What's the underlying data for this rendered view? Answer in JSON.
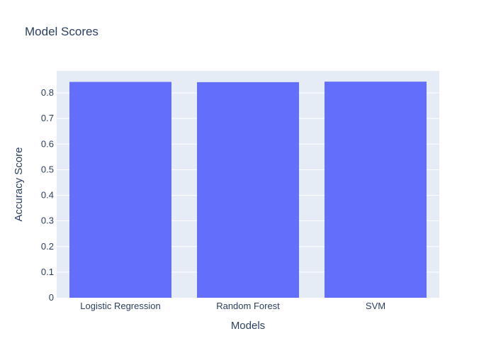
{
  "chart_data": {
    "type": "bar",
    "title": "Model Scores",
    "xlabel": "Models",
    "ylabel": "Accuracy Score",
    "categories": [
      "Logistic Regression",
      "Random Forest",
      "SVM"
    ],
    "values": [
      0.843,
      0.842,
      0.844
    ],
    "ylim": [
      0,
      0.886
    ],
    "yticks": [
      0,
      0.1,
      0.2,
      0.3,
      0.4,
      0.5,
      0.6,
      0.7,
      0.8
    ],
    "ytick_labels": [
      "0",
      "0.1",
      "0.2",
      "0.3",
      "0.4",
      "0.5",
      "0.6",
      "0.7",
      "0.8"
    ],
    "grid": true,
    "colors": {
      "bar": "#636efa",
      "plot_bg": "#e5ecf6",
      "grid": "#ffffff",
      "text": "#2a3f5f"
    }
  }
}
